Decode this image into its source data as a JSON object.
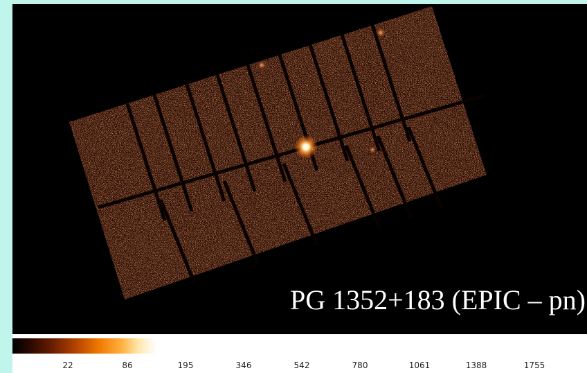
{
  "caption": "PG 1352+183 (EPIC – pn)",
  "colorbar": {
    "tick_labels": [
      "22",
      "86",
      "195",
      "346",
      "542",
      "780",
      "1061",
      "1388",
      "1755"
    ]
  },
  "colors": {
    "background": "#bff5ea",
    "image_background": "#000000",
    "detector_glow": "#6b2a10",
    "source": "#ffffff"
  }
}
